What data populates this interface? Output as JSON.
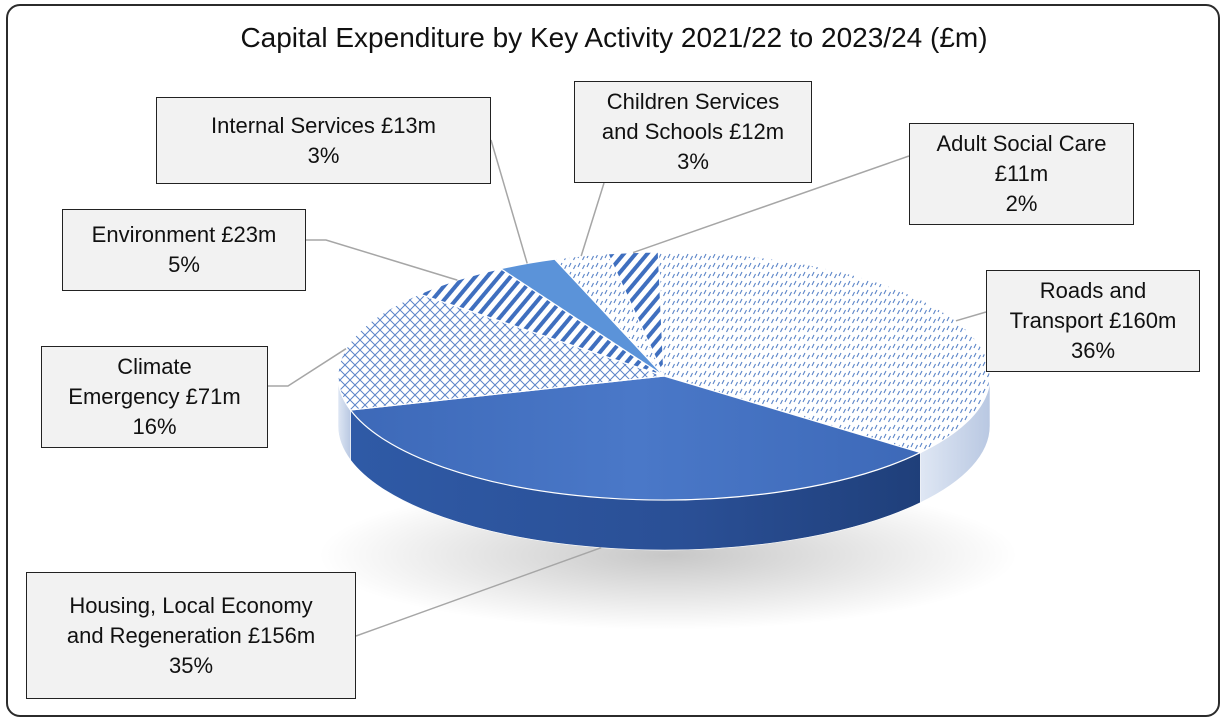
{
  "colors": {
    "accent": "#4472c4",
    "dark": "#2b4f9a",
    "frame": "#2b2b2b",
    "label_bg": "#f2f2f2"
  },
  "chart_data": {
    "type": "pie",
    "title": "Capital Expenditure by Key Activity 2021/22 to 2023/24 (£m)",
    "unit": "£m",
    "slices": [
      {
        "key": "roads",
        "name": "Roads and Transport",
        "value": 160,
        "percent": 36,
        "pattern": "dots"
      },
      {
        "key": "housing",
        "name": "Housing, Local Economy and Regeneration",
        "value": 156,
        "percent": 35,
        "pattern": "solid"
      },
      {
        "key": "climate",
        "name": "Climate Emergency",
        "value": 71,
        "percent": 16,
        "pattern": "crosshatch"
      },
      {
        "key": "environment",
        "name": "Environment",
        "value": 23,
        "percent": 5,
        "pattern": "stripes"
      },
      {
        "key": "internal",
        "name": "Internal Services",
        "value": 13,
        "percent": 3,
        "pattern": "solid-light"
      },
      {
        "key": "children",
        "name": "Children Services and Schools",
        "value": 12,
        "percent": 3,
        "pattern": "dots"
      },
      {
        "key": "adult",
        "name": "Adult Social Care",
        "value": 11,
        "percent": 2,
        "pattern": "stripes"
      }
    ],
    "data_labels": {
      "internal": [
        "Internal Services £13m",
        "3%"
      ],
      "children": [
        "Children Services",
        "and Schools £12m",
        "3%"
      ],
      "adult": [
        "Adult Social Care",
        "£11m",
        "2%"
      ],
      "environment": [
        "Environment £23m",
        "5%"
      ],
      "roads": [
        "Roads and",
        "Transport £160m",
        "36%"
      ],
      "climate": [
        "Climate",
        "Emergency £71m",
        "16%"
      ],
      "housing": [
        "Housing, Local Economy",
        "and Regeneration £156m",
        "35%"
      ]
    }
  }
}
